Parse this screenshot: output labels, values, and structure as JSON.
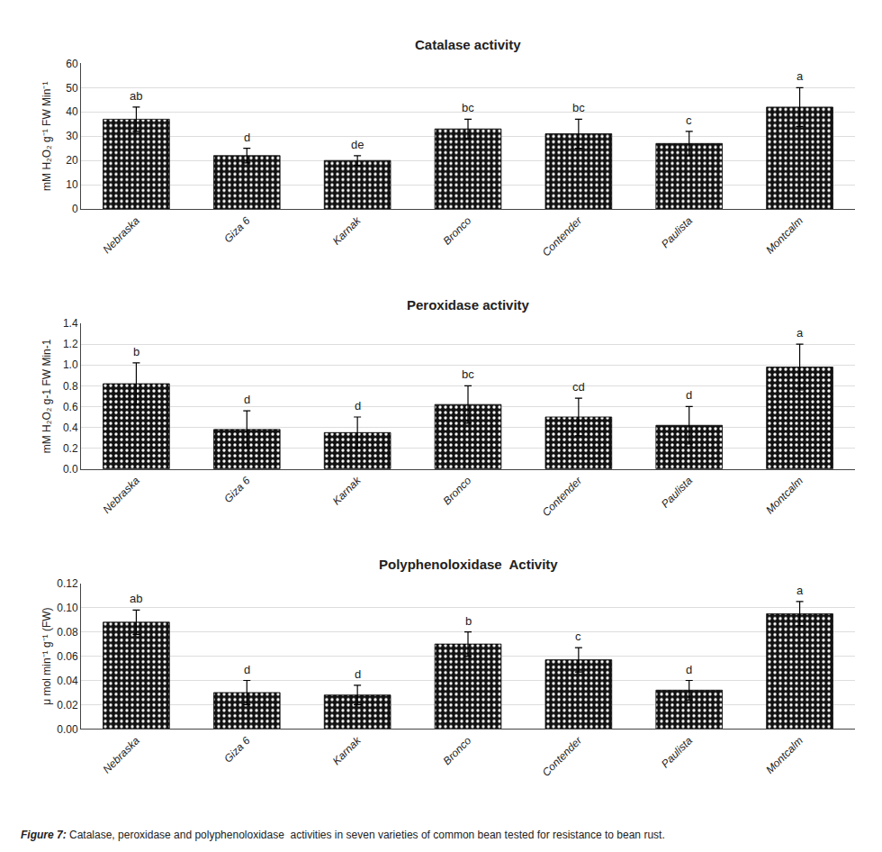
{
  "chart_data": [
    {
      "type": "bar",
      "title": "Catalase activity",
      "ylabel": "mM H₂O₂ g⁻¹ FW Min⁻¹",
      "categories": [
        "Nebraska",
        "Giza 6",
        "Karnak",
        "Bronco",
        "Contender",
        "Paulista",
        "Montcalm"
      ],
      "values": [
        37,
        22,
        20,
        33,
        31,
        27,
        42
      ],
      "errors": [
        5,
        3,
        2,
        4,
        6,
        5,
        8
      ],
      "annotations": [
        "ab",
        "d",
        "de",
        "bc",
        "bc",
        "c",
        "a"
      ],
      "color": "#111111",
      "ylim": [
        0,
        60
      ],
      "yticks": [
        0,
        10,
        20,
        30,
        40,
        50,
        60
      ],
      "grid": true
    },
    {
      "type": "bar",
      "title": "Peroxidase activity",
      "ylabel": "mM H₂O₂ g-1 FW Min-1",
      "categories": [
        "Nebraska",
        "Giza 6",
        "Karnak",
        "Bronco",
        "Contender",
        "Paulista",
        "Montcalm"
      ],
      "values": [
        0.82,
        0.38,
        0.35,
        0.62,
        0.5,
        0.42,
        0.98
      ],
      "errors": [
        0.2,
        0.18,
        0.15,
        0.18,
        0.18,
        0.18,
        0.22
      ],
      "annotations": [
        "b",
        "d",
        "d",
        "bc",
        "cd",
        "d",
        "a"
      ],
      "color": "#111111",
      "ylim": [
        0,
        1.4
      ],
      "yticks": [
        {
          "value": 0,
          "label": "0.0"
        },
        0.2,
        0.4,
        0.6,
        0.8,
        {
          "value": 1.0,
          "label": "1.0"
        },
        1.2,
        1.4
      ],
      "grid": true
    },
    {
      "type": "bar",
      "title": "Polyphenoloxidase  Activity",
      "ylabel": "μ mol min⁻¹ g⁻¹ (FW)",
      "categories": [
        "Nebraska",
        "Giza 6",
        "Karnak",
        "Bronco",
        "Contender",
        "Paulista",
        "Montcalm"
      ],
      "values": [
        0.088,
        0.03,
        0.028,
        0.07,
        0.057,
        0.032,
        0.095
      ],
      "errors": [
        0.01,
        0.01,
        0.008,
        0.01,
        0.01,
        0.008,
        0.01
      ],
      "annotations": [
        "ab",
        "d",
        "d",
        "b",
        "c",
        "d",
        "a"
      ],
      "color": "#111111",
      "ylim": [
        0,
        0.12
      ],
      "yticks": [
        {
          "value": 0,
          "label": "0.00"
        },
        0.02,
        0.04,
        0.06,
        0.08,
        {
          "value": 0.1,
          "label": "0.10"
        },
        0.12
      ],
      "grid": true
    }
  ],
  "caption": [
    "Figure 7:",
    "Catalase, peroxidase and polyphenoloxidase  activities in seven varieties of common bean tested for resistance to bean rust."
  ]
}
